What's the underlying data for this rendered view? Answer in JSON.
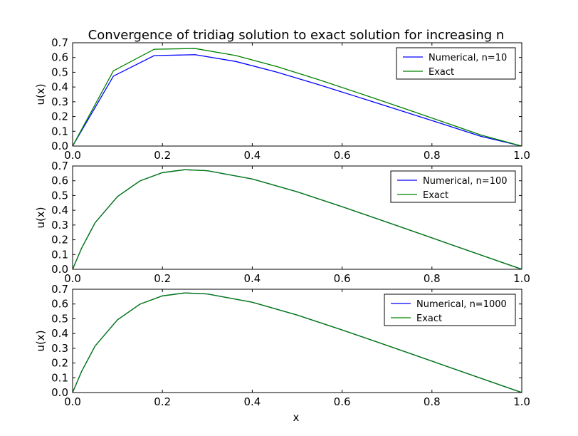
{
  "title": "Convergence of tridiag solution to exact solution for increasing n",
  "xlabel": "x",
  "colors": {
    "numerical": "#0000ff",
    "exact": "#008000"
  },
  "chart_data": [
    {
      "type": "line",
      "ylabel": "u(x)",
      "xlim": [
        0.0,
        1.0
      ],
      "ylim": [
        0.0,
        0.7
      ],
      "xticks": [
        "0.0",
        "0.2",
        "0.4",
        "0.6",
        "0.8",
        "1.0"
      ],
      "yticks": [
        "0.0",
        "0.1",
        "0.2",
        "0.3",
        "0.4",
        "0.5",
        "0.6",
        "0.7"
      ],
      "legend_position": "top-right",
      "series": [
        {
          "name": "Numerical, n=10",
          "color": "#0000ff",
          "x": [
            0,
            0.0909,
            0.1818,
            0.2727,
            0.3636,
            0.4545,
            0.5455,
            0.6364,
            0.7273,
            0.8182,
            0.9091,
            1.0
          ],
          "y": [
            0,
            0.474,
            0.613,
            0.619,
            0.573,
            0.501,
            0.418,
            0.331,
            0.243,
            0.155,
            0.066,
            0.0
          ]
        },
        {
          "name": "Exact",
          "color": "#008000",
          "x": [
            0,
            0.0909,
            0.1818,
            0.2727,
            0.3636,
            0.4545,
            0.5455,
            0.6364,
            0.7273,
            0.8182,
            0.9091,
            1.0
          ],
          "y": [
            0,
            0.51,
            0.656,
            0.661,
            0.613,
            0.539,
            0.452,
            0.36,
            0.266,
            0.171,
            0.075,
            0.0
          ]
        }
      ]
    },
    {
      "type": "line",
      "ylabel": "u(x)",
      "xlim": [
        0.0,
        1.0
      ],
      "ylim": [
        0.0,
        0.7
      ],
      "xticks": [
        "0.0",
        "0.2",
        "0.4",
        "0.6",
        "0.8",
        "1.0"
      ],
      "yticks": [
        "0.0",
        "0.1",
        "0.2",
        "0.3",
        "0.4",
        "0.5",
        "0.6",
        "0.7"
      ],
      "legend_position": "top-right",
      "series": [
        {
          "name": "Numerical, n=100",
          "color": "#0000ff",
          "x": [
            0,
            0.02,
            0.05,
            0.1,
            0.15,
            0.2,
            0.25,
            0.3,
            0.4,
            0.5,
            0.6,
            0.7,
            0.8,
            0.9,
            1.0
          ],
          "y": [
            0,
            0.143,
            0.315,
            0.493,
            0.599,
            0.655,
            0.675,
            0.668,
            0.612,
            0.525,
            0.424,
            0.319,
            0.213,
            0.106,
            0.0
          ]
        },
        {
          "name": "Exact",
          "color": "#008000",
          "x": [
            0,
            0.02,
            0.05,
            0.1,
            0.15,
            0.2,
            0.25,
            0.3,
            0.4,
            0.5,
            0.6,
            0.7,
            0.8,
            0.9,
            1.0
          ],
          "y": [
            0,
            0.143,
            0.315,
            0.493,
            0.599,
            0.655,
            0.675,
            0.668,
            0.612,
            0.525,
            0.424,
            0.319,
            0.213,
            0.106,
            0.0
          ]
        }
      ]
    },
    {
      "type": "line",
      "ylabel": "u(x)",
      "xlim": [
        0.0,
        1.0
      ],
      "ylim": [
        0.0,
        0.7
      ],
      "xticks": [
        "0.0",
        "0.2",
        "0.4",
        "0.6",
        "0.8",
        "1.0"
      ],
      "yticks": [
        "0.0",
        "0.1",
        "0.2",
        "0.3",
        "0.4",
        "0.5",
        "0.6",
        "0.7"
      ],
      "legend_position": "top-right",
      "series": [
        {
          "name": "Numerical, n=1000",
          "color": "#0000ff",
          "x": [
            0,
            0.02,
            0.05,
            0.1,
            0.15,
            0.2,
            0.25,
            0.3,
            0.4,
            0.5,
            0.6,
            0.7,
            0.8,
            0.9,
            1.0
          ],
          "y": [
            0,
            0.143,
            0.315,
            0.493,
            0.599,
            0.655,
            0.675,
            0.668,
            0.612,
            0.525,
            0.424,
            0.319,
            0.213,
            0.106,
            0.0
          ]
        },
        {
          "name": "Exact",
          "color": "#008000",
          "x": [
            0,
            0.02,
            0.05,
            0.1,
            0.15,
            0.2,
            0.25,
            0.3,
            0.4,
            0.5,
            0.6,
            0.7,
            0.8,
            0.9,
            1.0
          ],
          "y": [
            0,
            0.143,
            0.315,
            0.493,
            0.599,
            0.655,
            0.675,
            0.668,
            0.612,
            0.525,
            0.424,
            0.319,
            0.213,
            0.106,
            0.0
          ]
        }
      ]
    }
  ]
}
